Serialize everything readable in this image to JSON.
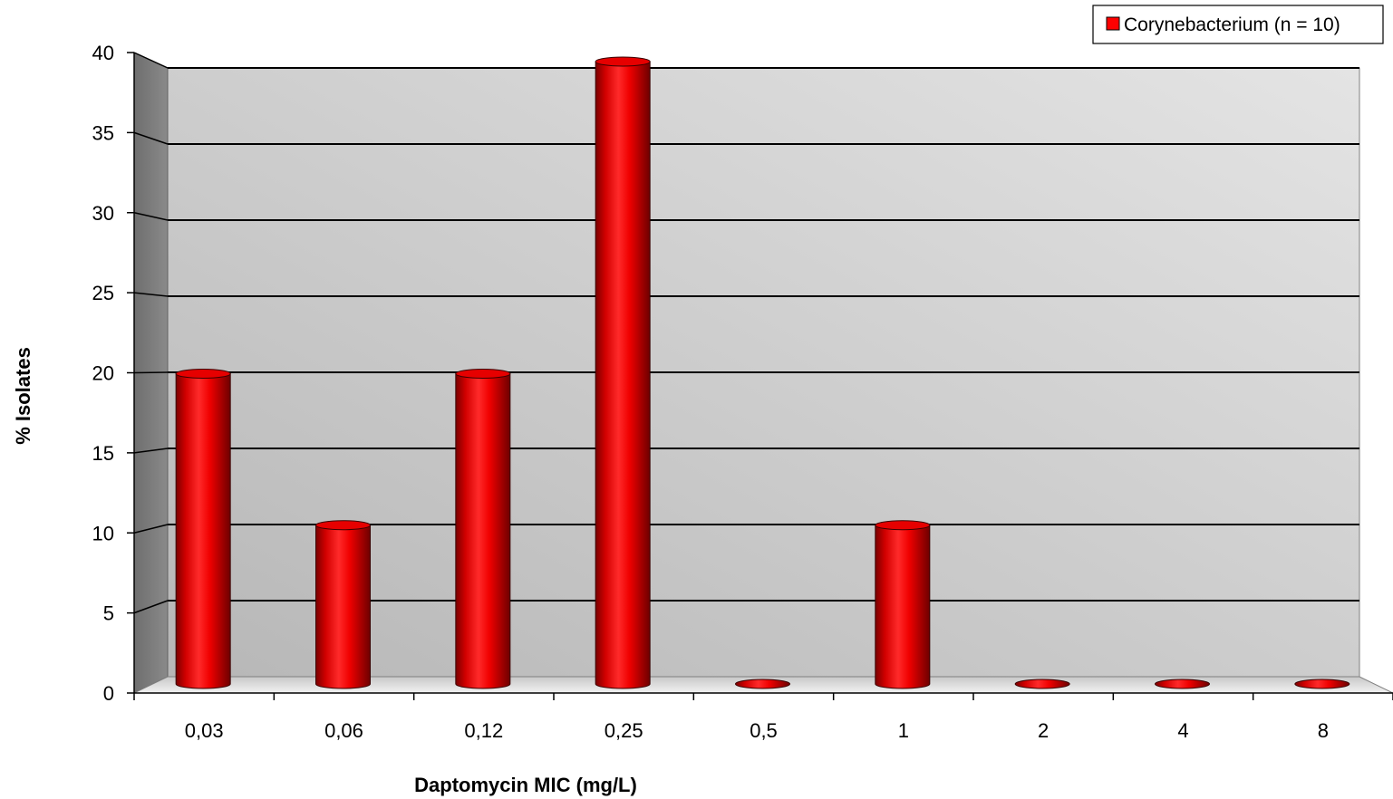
{
  "chart_data": {
    "type": "bar",
    "style": "3d-cylinder",
    "categories": [
      "0,03",
      "0,06",
      "0,12",
      "0,25",
      "0,5",
      "1",
      "2",
      "4",
      "8"
    ],
    "series": [
      {
        "name": "Corynebacterium (n = 10)",
        "values": [
          20,
          10,
          20,
          40,
          0,
          10,
          0,
          0,
          0
        ],
        "color": "#ff0000"
      }
    ],
    "xlabel": "Daptomycin MIC (mg/L)",
    "ylabel": "% Isolates",
    "ylim": [
      0,
      40
    ],
    "yticks": [
      "0",
      "5",
      "10",
      "15",
      "20",
      "25",
      "30",
      "35",
      "40"
    ],
    "grid": true,
    "legend_position": "top-right",
    "colors": {
      "bar": "#ff0000",
      "wall_side": "#7a7a7a",
      "wall_back_light": "#e3e3e3",
      "wall_back_dark": "#b9b9b9",
      "gridline": "#000000"
    }
  }
}
